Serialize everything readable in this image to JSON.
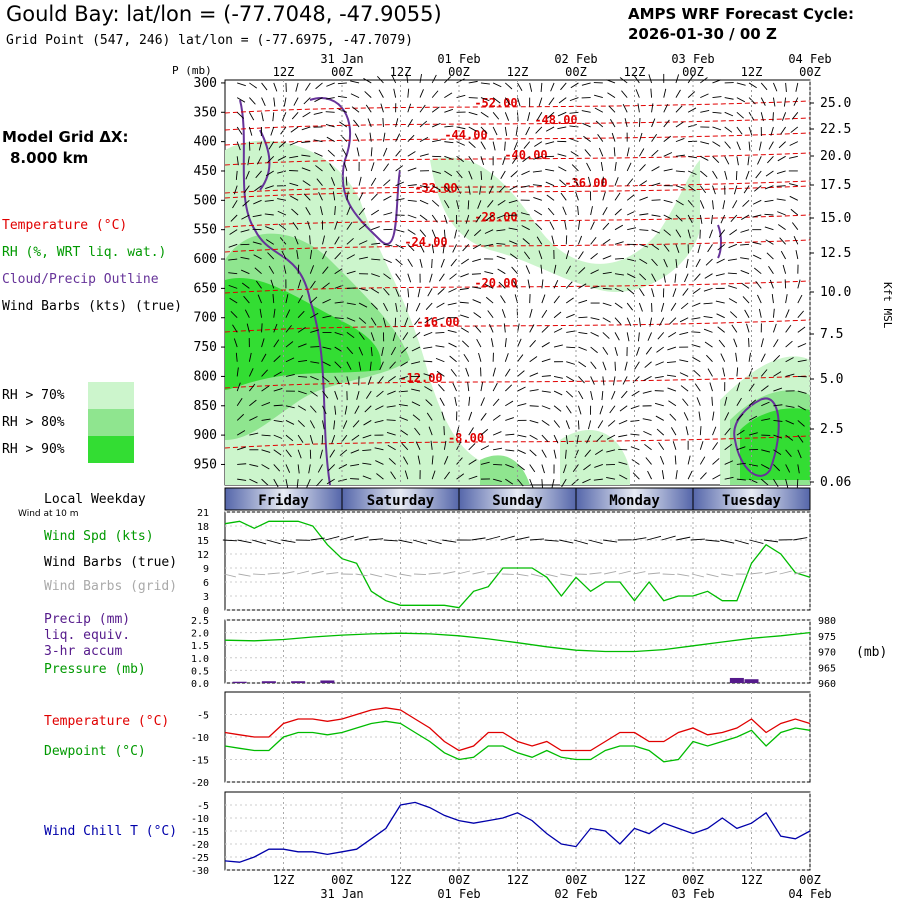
{
  "header": {
    "title": "Gould Bay:  lat/lon = (-77.7048, -47.9055)",
    "grid_point": "Grid Point (547, 246) lat/lon = (-77.6975, -47.7079)",
    "cycle_label": "AMPS WRF Forecast Cycle:",
    "cycle_value": "2026-01-30 / 00  Z"
  },
  "model_grid": {
    "label": "Model Grid ΔX:",
    "value": "8.000 km"
  },
  "legend": {
    "temperature": "Temperature (°C)",
    "rh": "RH (%, WRT liq. wat.)",
    "cloud": "Cloud/Precip Outline",
    "wind": "Wind Barbs (kts) (true)",
    "rh70": "RH > 70%",
    "rh80": "RH > 80%",
    "rh90": "RH > 90%"
  },
  "colors": {
    "rh70": "#ccf5cc",
    "rh80": "#8fe58f",
    "rh90": "#33dd33",
    "temp": "#e00000",
    "rh_text": "#009900",
    "cloud": "#663399",
    "wind_chill": "#0000aa",
    "precip": "#551a8b",
    "grid_barbs": "#aaaaaa"
  },
  "time_axis": {
    "top_hours": [
      "12Z",
      "00Z",
      "12Z",
      "00Z",
      "12Z",
      "00Z",
      "12Z",
      "00Z",
      "12Z",
      "00Z"
    ],
    "top_dates": [
      "31 Jan",
      "01 Feb",
      "02 Feb",
      "03 Feb",
      "04 Feb"
    ],
    "bottom_hours": [
      "12Z",
      "00Z",
      "12Z",
      "00Z",
      "12Z",
      "00Z",
      "12Z",
      "00Z",
      "12Z",
      "00Z"
    ],
    "bottom_dates": [
      "31 Jan",
      "01 Feb",
      "02 Feb",
      "03 Feb",
      "04 Feb"
    ]
  },
  "weekdays": {
    "label": "Local Weekday",
    "days": [
      "Friday",
      "Saturday",
      "Sunday",
      "Monday",
      "Tuesday"
    ]
  },
  "pressure_axis": {
    "label": "P (mb)",
    "ticks": [
      "300",
      "350",
      "400",
      "450",
      "500",
      "550",
      "600",
      "650",
      "700",
      "750",
      "800",
      "850",
      "900",
      "950"
    ]
  },
  "height_axis": {
    "label": "Kft MSL",
    "ticks": [
      "25.0",
      "22.5",
      "20.0",
      "17.5",
      "15.0",
      "12.5",
      "10.0",
      "7.5",
      "5.0",
      "2.5",
      "0.06"
    ]
  },
  "temp_contours": [
    "-52.00",
    "-48.00",
    "-44.00",
    "-40.00",
    "-36.00",
    "-32.00",
    "-28.00",
    "-24.00",
    "-20.00",
    "-16.00",
    "-12.00",
    "-8.00"
  ],
  "wind_panel": {
    "caption": "Wind at 10 m",
    "labels": {
      "speed": "Wind Spd (kts)",
      "barbs_true": "Wind Barbs (true)",
      "barbs_grid": "Wind Barbs (grid)"
    },
    "yticks": [
      "21",
      "18",
      "15",
      "12",
      "9",
      "6",
      "3",
      "0"
    ]
  },
  "precip_panel": {
    "labels": {
      "precip": "Precip (mm)",
      "liq": "liq. equiv.",
      "accum": "3-hr accum",
      "pressure": "Pressure (mb)"
    },
    "left_ticks": [
      "2.5",
      "2.0",
      "1.5",
      "1.0",
      "0.5",
      "0.0"
    ],
    "right_ticks": [
      "980",
      "975",
      "970",
      "965",
      "960"
    ],
    "right_unit": "(mb)"
  },
  "temp_panel": {
    "labels": {
      "temp": "Temperature (°C)",
      "dew": "Dewpoint (°C)"
    },
    "yticks": [
      "-5",
      "-10",
      "-15",
      "-20"
    ]
  },
  "chill_panel": {
    "label": "Wind Chill T (°C)",
    "yticks": [
      "-5",
      "-10",
      "-15",
      "-20",
      "-25",
      "-30"
    ]
  },
  "chart_data": [
    {
      "type": "line",
      "title": "Wind Spd (kts)",
      "x_unit": "forecast hour",
      "x": [
        0,
        3,
        6,
        9,
        12,
        15,
        18,
        21,
        24,
        27,
        30,
        33,
        36,
        39,
        42,
        45,
        48,
        51,
        54,
        57,
        60,
        63,
        66,
        69,
        72,
        75,
        78,
        81,
        84,
        87,
        90,
        93,
        96,
        99,
        102,
        105,
        108,
        111,
        114,
        117,
        120
      ],
      "series": [
        {
          "name": "Wind Spd (kts)",
          "values": [
            18.5,
            19,
            17.5,
            19,
            19,
            19,
            18,
            14,
            11,
            10,
            4,
            2,
            1,
            1,
            1,
            1,
            0.5,
            4,
            5,
            9,
            9,
            9,
            7,
            3,
            7,
            4,
            6,
            6,
            2,
            6,
            2,
            3,
            3,
            4,
            2,
            2,
            10,
            14,
            12,
            8,
            7
          ]
        }
      ],
      "ylim": [
        0,
        21
      ]
    },
    {
      "type": "line",
      "title": "Pressure (mb)",
      "x": [
        0,
        6,
        12,
        18,
        24,
        30,
        36,
        42,
        48,
        54,
        60,
        66,
        72,
        78,
        84,
        90,
        96,
        102,
        108,
        114,
        120
      ],
      "series": [
        {
          "name": "Pressure (mb)",
          "values": [
            973.6,
            973.4,
            973.8,
            974.6,
            975.2,
            975.6,
            975.8,
            975.6,
            975,
            974,
            972.8,
            971.5,
            970.4,
            970,
            970,
            970.6,
            971.8,
            973,
            974.2,
            975,
            976
          ]
        }
      ],
      "ylim": [
        960,
        980
      ]
    },
    {
      "type": "bar",
      "title": "Precip (mm)",
      "x": [
        3,
        9,
        15,
        21,
        105,
        108
      ],
      "values": [
        0.05,
        0.07,
        0.07,
        0.1,
        0.2,
        0.15
      ],
      "ylim": [
        0,
        2.5
      ]
    },
    {
      "type": "line",
      "title": "Temperature / Dewpoint (°C)",
      "x": [
        0,
        3,
        6,
        9,
        12,
        15,
        18,
        21,
        24,
        27,
        30,
        33,
        36,
        39,
        42,
        45,
        48,
        51,
        54,
        57,
        60,
        63,
        66,
        69,
        72,
        75,
        78,
        81,
        84,
        87,
        90,
        93,
        96,
        99,
        102,
        105,
        108,
        111,
        114,
        117,
        120
      ],
      "series": [
        {
          "name": "Temperature (°C)",
          "values": [
            -9,
            -9.5,
            -10,
            -10,
            -7,
            -6,
            -6,
            -6.5,
            -6,
            -5,
            -4,
            -3.5,
            -4,
            -6,
            -8,
            -11,
            -13,
            -12,
            -9,
            -9,
            -11,
            -12,
            -11,
            -13,
            -13,
            -13,
            -11,
            -9,
            -9,
            -11,
            -11,
            -9,
            -8,
            -9.5,
            -9,
            -8,
            -6,
            -9,
            -7,
            -6,
            -7
          ]
        },
        {
          "name": "Dewpoint (°C)",
          "values": [
            -12,
            -12.5,
            -13,
            -13,
            -10,
            -9,
            -9,
            -9.5,
            -9,
            -8,
            -7,
            -6.5,
            -7,
            -9,
            -11,
            -13.5,
            -15,
            -14.5,
            -12,
            -12,
            -13.5,
            -14.5,
            -13,
            -14.5,
            -15,
            -15,
            -13,
            -12,
            -12,
            -13,
            -15.5,
            -15,
            -11,
            -12,
            -11,
            -10,
            -8.5,
            -12,
            -9,
            -8,
            -8.5
          ]
        }
      ],
      "ylim": [
        -20,
        0
      ]
    },
    {
      "type": "line",
      "title": "Wind Chill T (°C)",
      "x": [
        0,
        3,
        6,
        9,
        12,
        15,
        18,
        21,
        24,
        27,
        30,
        33,
        36,
        39,
        42,
        45,
        48,
        51,
        54,
        57,
        60,
        63,
        66,
        69,
        72,
        75,
        78,
        81,
        84,
        87,
        90,
        93,
        96,
        99,
        102,
        105,
        108,
        111,
        114,
        117,
        120
      ],
      "series": [
        {
          "name": "Wind Chill T (°C)",
          "values": [
            -26.5,
            -27,
            -25,
            -22,
            -22,
            -23,
            -23,
            -24,
            -23,
            -22,
            -18,
            -14,
            -5,
            -4,
            -6,
            -9,
            -11,
            -12,
            -11,
            -10,
            -8,
            -11,
            -16,
            -20,
            -21,
            -14,
            -15,
            -20,
            -14,
            -16,
            -12,
            -14,
            -16,
            -14,
            -10,
            -14,
            -12,
            -8,
            -17,
            -18,
            -15
          ]
        }
      ],
      "ylim": [
        -30,
        0
      ]
    }
  ]
}
